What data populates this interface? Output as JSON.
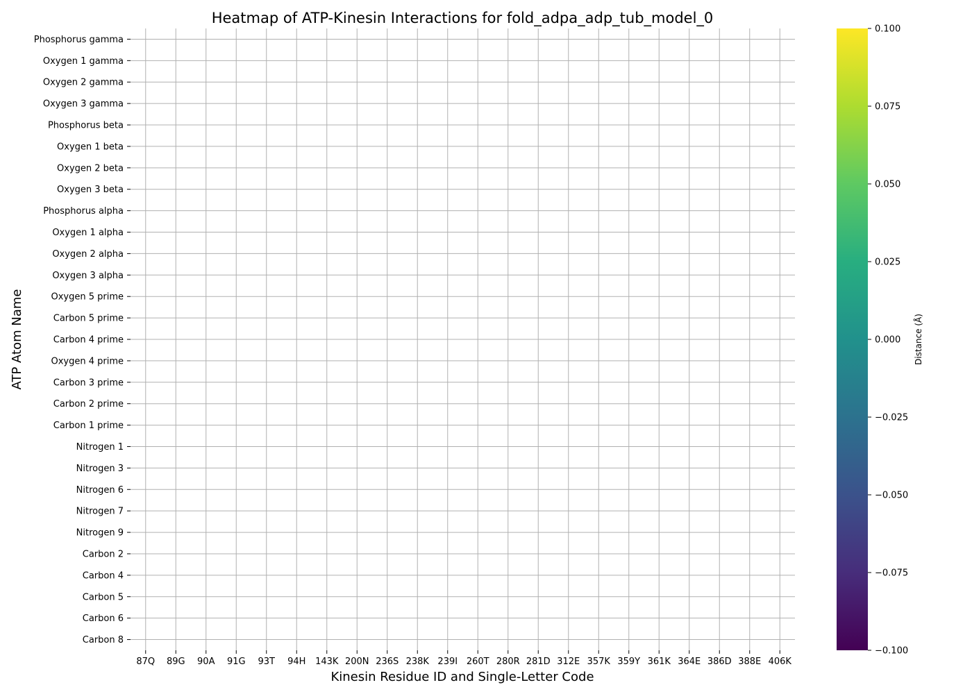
{
  "chart_data": {
    "type": "heatmap",
    "title": "Heatmap of ATP-Kinesin Interactions for fold_adpa_adp_tub_model_0",
    "xlabel": "Kinesin Residue ID and Single-Letter Code",
    "ylabel": "ATP Atom Name",
    "x_categories": [
      "87Q",
      "89G",
      "90A",
      "91G",
      "93T",
      "94H",
      "143K",
      "200N",
      "236S",
      "238K",
      "239I",
      "260T",
      "280R",
      "281D",
      "312E",
      "357K",
      "359Y",
      "361K",
      "364E",
      "386D",
      "388E",
      "406K"
    ],
    "y_categories": [
      "Phosphorus gamma",
      "Oxygen 1 gamma",
      "Oxygen 2 gamma",
      "Oxygen 3 gamma",
      "Phosphorus beta",
      "Oxygen 1 beta",
      "Oxygen 2 beta",
      "Oxygen 3 beta",
      "Phosphorus alpha",
      "Oxygen 1 alpha",
      "Oxygen 2 alpha",
      "Oxygen 3 alpha",
      "Oxygen 5 prime",
      "Carbon 5 prime",
      "Carbon 4 prime",
      "Oxygen 4 prime",
      "Carbon 3 prime",
      "Carbon 2 prime",
      "Carbon 1 prime",
      "Nitrogen 1",
      "Nitrogen 3",
      "Nitrogen 6",
      "Nitrogen 7",
      "Nitrogen 9",
      "Carbon 2",
      "Carbon 4",
      "Carbon 5",
      "Carbon 6",
      "Carbon 8"
    ],
    "values": "all empty (no interactions shown)",
    "grid": true,
    "colormap": "viridis",
    "colorbar": {
      "label": "Distance (Å)",
      "range": [
        -0.1,
        0.1
      ],
      "ticks": [
        "0.100",
        "0.075",
        "0.050",
        "0.025",
        "0.000",
        "−0.025",
        "−0.050",
        "−0.075",
        "−0.100"
      ]
    }
  }
}
